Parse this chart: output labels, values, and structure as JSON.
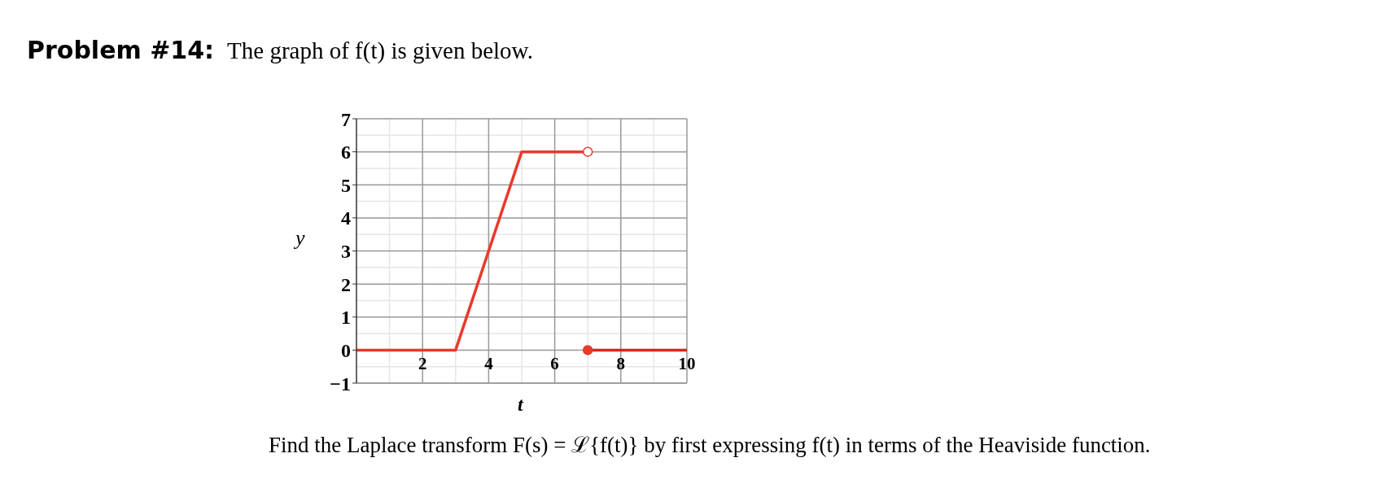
{
  "chart_data": {
    "type": "line",
    "title": "Problem #14:",
    "subtitle": "The graph of f(t) is given below.",
    "xlabel": "t",
    "ylabel": "y",
    "annotations": [
      "Find the Laplace transform F(s) = ℒ{f(t)} by first expressing f(t) in terms of the Heaviside function."
    ],
    "series": [
      {
        "color": "#e8392b",
        "x": [
          0,
          3,
          5,
          7
        ],
        "values": [
          0,
          0,
          6,
          6
        ]
      },
      {
        "color": "#d42a1e",
        "x": [
          7,
          10
        ],
        "values": [
          0,
          0
        ]
      },
      {
        "type": "scatter",
        "color": "#e8392b",
        "colors": [
          "#ffffff"
        ],
        "x": [
          7
        ],
        "values": [
          6
        ]
      },
      {
        "type": "scatter",
        "color": "#e8392b",
        "colors": [
          "#e8392b"
        ],
        "x": [
          7
        ],
        "values": [
          0
        ]
      }
    ],
    "xlim": [
      0,
      10
    ],
    "xticks": [
      2,
      4,
      6,
      8,
      10
    ],
    "ylim": [
      -1,
      7
    ],
    "yticks": [
      {
        "value": -1,
        "label": "−1"
      },
      0,
      1,
      2,
      3,
      4,
      5,
      6,
      7
    ],
    "grid": true,
    "line_style": "solid"
  }
}
